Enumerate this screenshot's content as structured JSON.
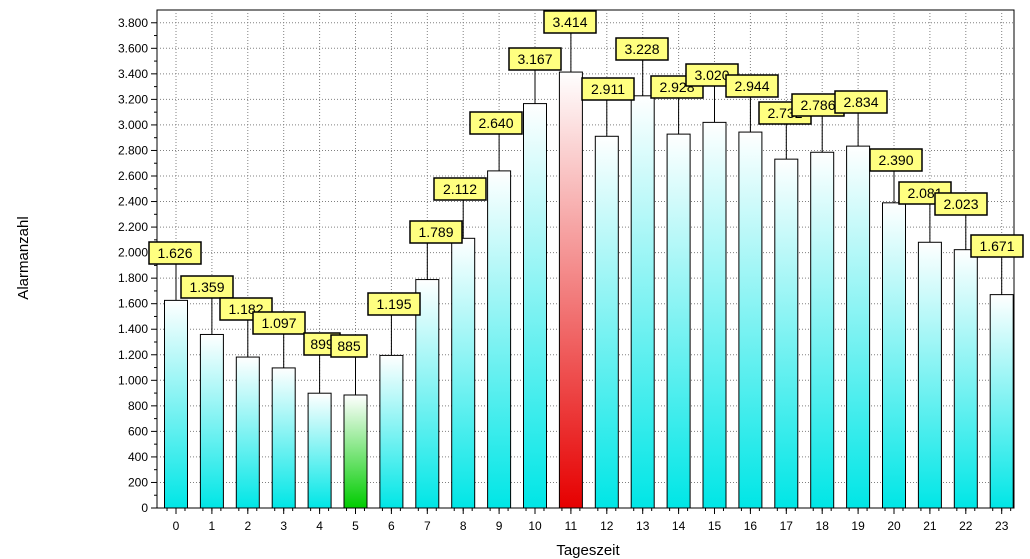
{
  "chart_data": {
    "type": "bar",
    "categories": [
      "0",
      "1",
      "2",
      "3",
      "4",
      "5",
      "6",
      "7",
      "8",
      "9",
      "10",
      "11",
      "12",
      "13",
      "14",
      "15",
      "16",
      "17",
      "18",
      "19",
      "20",
      "21",
      "22",
      "23"
    ],
    "values": [
      1626,
      1359,
      1182,
      1097,
      899,
      885,
      1195,
      1789,
      2112,
      2640,
      3167,
      3414,
      2911,
      3228,
      2928,
      3020,
      2944,
      2732,
      2786,
      2834,
      2390,
      2081,
      2023,
      1671
    ],
    "data_labels": [
      "1.626",
      "1.359",
      "1.182",
      "1.097",
      "899",
      "885",
      "1.195",
      "1.789",
      "2.112",
      "2.640",
      "3.167",
      "3.414",
      "2.911",
      "3.228",
      "2.928",
      "3.020",
      "2.944",
      "2.732",
      "2.786",
      "2.834",
      "2.390",
      "2.081",
      "2.023",
      "1.671"
    ],
    "xlabel": "Tageszeit",
    "ylabel": "Alarmanzahl",
    "ylim": [
      0,
      3900
    ],
    "yticks": [
      0,
      200,
      400,
      600,
      800,
      1000,
      1200,
      1400,
      1600,
      1800,
      2000,
      2200,
      2400,
      2600,
      2800,
      3000,
      3200,
      3400,
      3600,
      3800
    ],
    "ytick_labels": [
      "0",
      "200",
      "400",
      "600",
      "800",
      "1.000",
      "1.200",
      "1.400",
      "1.600",
      "1.800",
      "2.000",
      "2.200",
      "2.400",
      "2.600",
      "2.800",
      "3.000",
      "3.200",
      "3.400",
      "3.600",
      "3.800"
    ],
    "grid": true,
    "highlight": {
      "min_index": 5,
      "max_index": 11
    },
    "colors": {
      "bar_top": "#ffffff",
      "bar_bottom": "#00e6e6",
      "min_bar": "#00cc00",
      "max_bar": "#e60000",
      "label_bg": "#ffff80",
      "grid": "#808080"
    }
  }
}
